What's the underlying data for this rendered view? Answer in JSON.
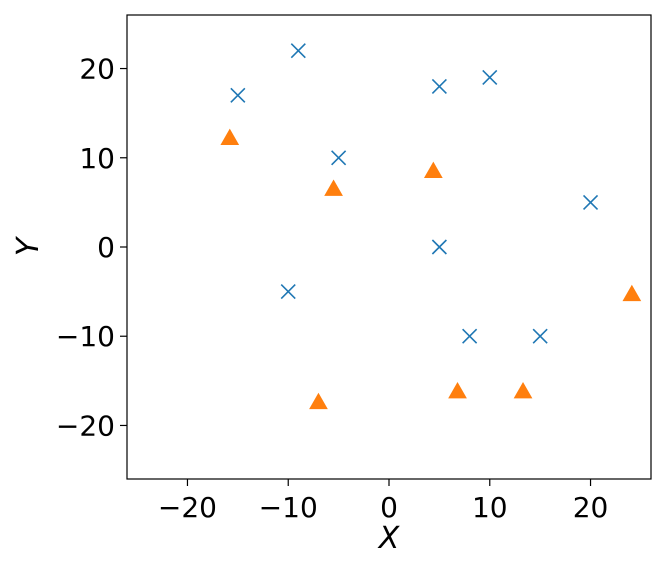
{
  "chart_data": {
    "type": "scatter",
    "xlabel": "X",
    "ylabel": "Y",
    "xlim": [
      -26,
      26
    ],
    "ylim": [
      -26,
      26
    ],
    "xticks": [
      -20,
      -10,
      0,
      10,
      20
    ],
    "yticks": [
      -20,
      -10,
      0,
      10,
      20
    ],
    "grid": false,
    "series": [
      {
        "marker": "x",
        "color": "#1f77b4",
        "points": [
          [
            -15,
            17
          ],
          [
            -9,
            22
          ],
          [
            -5,
            10
          ],
          [
            5,
            18
          ],
          [
            10,
            19
          ],
          [
            20,
            5
          ],
          [
            5,
            0
          ],
          [
            -10,
            -5
          ],
          [
            8,
            -10
          ],
          [
            15,
            -10
          ]
        ]
      },
      {
        "marker": "triangle",
        "color": "#ff7f0e",
        "points": [
          [
            -15.8,
            12.2
          ],
          [
            -5.5,
            6.5
          ],
          [
            4.4,
            8.5
          ],
          [
            24.1,
            -5.3
          ],
          [
            -7,
            -17.4
          ],
          [
            6.8,
            -16.2
          ],
          [
            13.3,
            -16.2
          ]
        ]
      }
    ]
  }
}
